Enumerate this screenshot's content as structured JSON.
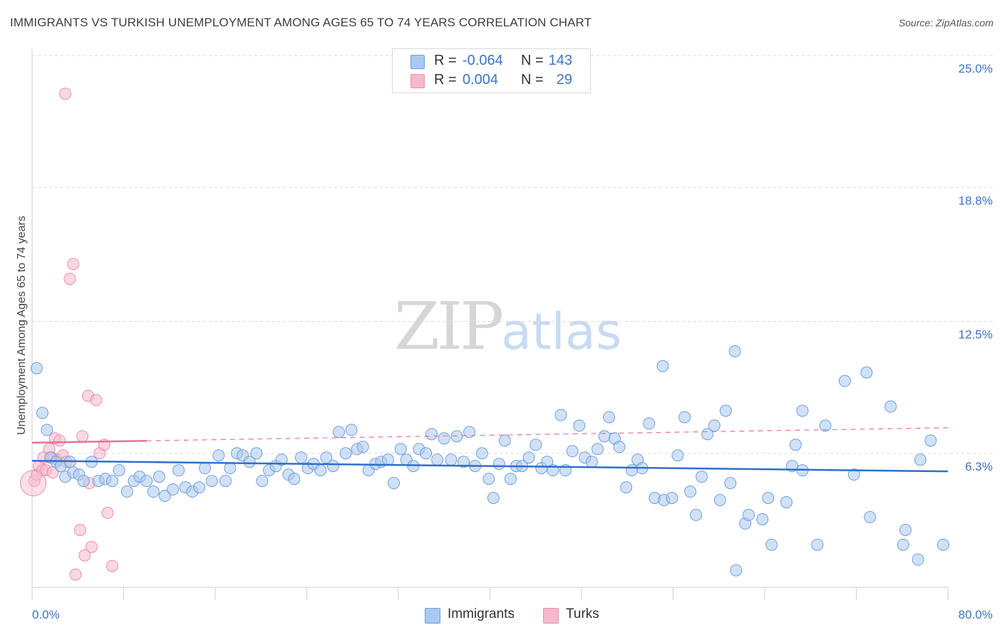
{
  "title": "IMMIGRANTS VS TURKISH UNEMPLOYMENT AMONG AGES 65 TO 74 YEARS CORRELATION CHART",
  "source": "Source: ZipAtlas.com",
  "watermark": {
    "zip": "ZIP",
    "atlas": "atlas"
  },
  "legend": {
    "immigrants": {
      "r_label": "R = ",
      "r_value": "-0.064",
      "n_label": "N = ",
      "n_value": "143"
    },
    "turks": {
      "r_label": "R = ",
      "r_value": "0.004",
      "n_label": "N = ",
      "n_value": "29"
    }
  },
  "bottom_legend": {
    "immigrants": "Immigrants",
    "turks": "Turks"
  },
  "colors": {
    "immigrants_fill": "#a9c9f0",
    "immigrants_stroke": "#6f9fdc",
    "immigrants_line": "#2f6fc9",
    "turks_fill": "#f6b8cb",
    "turks_stroke": "#e98fab",
    "turks_line": "#e8709a",
    "grid": "#d8d8d8",
    "tick_label": "#3b73c4"
  },
  "chart_data": {
    "type": "scatter",
    "title": "IMMIGRANTS VS TURKISH UNEMPLOYMENT AMONG AGES 65 TO 74 YEARS CORRELATION CHART",
    "xlabel": "",
    "ylabel": "Unemployment Among Ages 65 to 74 years",
    "xlim": [
      0,
      80
    ],
    "ylim": [
      0,
      25
    ],
    "x_tick_labels": [
      "0.0%",
      "80.0%"
    ],
    "y_ticks": [
      6.3,
      12.5,
      18.8,
      25.0
    ],
    "y_tick_labels": [
      "6.3%",
      "12.5%",
      "18.8%",
      "25.0%"
    ],
    "grid": true,
    "legend_position": "top-center",
    "series": [
      {
        "name": "Immigrants",
        "trend": {
          "x": [
            0,
            80
          ],
          "y": [
            5.95,
            5.45
          ]
        },
        "points": [
          [
            0.4,
            10.3
          ],
          [
            0.9,
            8.2
          ],
          [
            1.3,
            7.4
          ],
          [
            1.6,
            6.1
          ],
          [
            2.1,
            5.9
          ],
          [
            2.5,
            5.7
          ],
          [
            2.9,
            5.2
          ],
          [
            3.3,
            5.9
          ],
          [
            3.6,
            5.4
          ],
          [
            4.1,
            5.3
          ],
          [
            4.5,
            5.0
          ],
          [
            5.2,
            5.9
          ],
          [
            5.8,
            5.0
          ],
          [
            6.4,
            5.1
          ],
          [
            7.0,
            5.0
          ],
          [
            7.6,
            5.5
          ],
          [
            8.3,
            4.5
          ],
          [
            8.9,
            5.0
          ],
          [
            9.4,
            5.2
          ],
          [
            10.0,
            5.0
          ],
          [
            10.6,
            4.5
          ],
          [
            11.1,
            5.2
          ],
          [
            11.6,
            4.3
          ],
          [
            12.3,
            4.6
          ],
          [
            12.8,
            5.5
          ],
          [
            13.4,
            4.7
          ],
          [
            14.0,
            4.5
          ],
          [
            14.6,
            4.7
          ],
          [
            15.1,
            5.6
          ],
          [
            15.7,
            5.0
          ],
          [
            16.3,
            6.2
          ],
          [
            16.9,
            5.0
          ],
          [
            17.3,
            5.6
          ],
          [
            17.9,
            6.3
          ],
          [
            18.4,
            6.2
          ],
          [
            19.0,
            5.9
          ],
          [
            19.6,
            6.3
          ],
          [
            20.1,
            5.0
          ],
          [
            20.7,
            5.5
          ],
          [
            21.3,
            5.7
          ],
          [
            21.8,
            6.0
          ],
          [
            22.4,
            5.3
          ],
          [
            22.9,
            5.1
          ],
          [
            23.5,
            6.1
          ],
          [
            24.1,
            5.6
          ],
          [
            24.6,
            5.8
          ],
          [
            25.2,
            5.5
          ],
          [
            25.7,
            6.1
          ],
          [
            26.3,
            5.7
          ],
          [
            26.8,
            7.3
          ],
          [
            27.4,
            6.3
          ],
          [
            27.9,
            7.4
          ],
          [
            28.4,
            6.5
          ],
          [
            28.9,
            6.6
          ],
          [
            29.4,
            5.5
          ],
          [
            30.0,
            5.8
          ],
          [
            30.5,
            5.9
          ],
          [
            31.1,
            6.0
          ],
          [
            31.6,
            4.9
          ],
          [
            32.2,
            6.5
          ],
          [
            32.7,
            6.0
          ],
          [
            33.3,
            5.7
          ],
          [
            33.8,
            6.5
          ],
          [
            34.4,
            6.3
          ],
          [
            34.9,
            7.2
          ],
          [
            35.4,
            6.0
          ],
          [
            36.0,
            7.0
          ],
          [
            36.6,
            6.0
          ],
          [
            37.1,
            7.1
          ],
          [
            37.7,
            5.9
          ],
          [
            38.2,
            7.3
          ],
          [
            38.7,
            5.7
          ],
          [
            39.3,
            6.3
          ],
          [
            39.9,
            5.1
          ],
          [
            40.3,
            4.2
          ],
          [
            40.8,
            5.8
          ],
          [
            41.3,
            6.9
          ],
          [
            41.8,
            5.1
          ],
          [
            42.3,
            5.7
          ],
          [
            42.8,
            5.7
          ],
          [
            43.4,
            6.1
          ],
          [
            44.0,
            6.7
          ],
          [
            44.5,
            5.6
          ],
          [
            45.0,
            5.9
          ],
          [
            45.5,
            5.5
          ],
          [
            46.2,
            8.1
          ],
          [
            46.6,
            5.5
          ],
          [
            47.2,
            6.4
          ],
          [
            47.8,
            7.6
          ],
          [
            48.3,
            6.1
          ],
          [
            48.9,
            5.9
          ],
          [
            49.4,
            6.5
          ],
          [
            50.0,
            7.1
          ],
          [
            50.4,
            8.0
          ],
          [
            50.9,
            7.0
          ],
          [
            51.3,
            6.6
          ],
          [
            51.9,
            4.7
          ],
          [
            52.4,
            5.5
          ],
          [
            52.9,
            6.0
          ],
          [
            53.3,
            5.6
          ],
          [
            53.9,
            7.7
          ],
          [
            54.4,
            4.2
          ],
          [
            55.1,
            10.4
          ],
          [
            55.2,
            4.1
          ],
          [
            55.9,
            4.2
          ],
          [
            56.4,
            6.2
          ],
          [
            57.0,
            8.0
          ],
          [
            57.5,
            4.5
          ],
          [
            58.0,
            3.4
          ],
          [
            58.5,
            5.2
          ],
          [
            59.0,
            7.2
          ],
          [
            59.6,
            7.6
          ],
          [
            60.1,
            4.1
          ],
          [
            60.6,
            8.3
          ],
          [
            61.0,
            4.9
          ],
          [
            61.4,
            11.1
          ],
          [
            62.3,
            3.0
          ],
          [
            62.6,
            3.4
          ],
          [
            63.8,
            3.2
          ],
          [
            64.3,
            4.2
          ],
          [
            64.6,
            2.0
          ],
          [
            65.9,
            4.0
          ],
          [
            66.4,
            5.7
          ],
          [
            66.7,
            6.7
          ],
          [
            67.3,
            8.3
          ],
          [
            67.3,
            5.5
          ],
          [
            68.6,
            2.0
          ],
          [
            69.3,
            7.6
          ],
          [
            71.0,
            9.7
          ],
          [
            71.8,
            5.3
          ],
          [
            72.9,
            10.1
          ],
          [
            73.2,
            3.3
          ],
          [
            75.0,
            8.5
          ],
          [
            76.3,
            2.7
          ],
          [
            76.1,
            2.0
          ],
          [
            77.4,
            1.3
          ],
          [
            77.6,
            6.0
          ],
          [
            78.5,
            6.9
          ],
          [
            79.6,
            2.0
          ],
          [
            61.5,
            0.8
          ]
        ]
      },
      {
        "name": "Turks",
        "trend": {
          "x": [
            0,
            80
          ],
          "y": [
            6.8,
            7.5
          ]
        },
        "points": [
          [
            0.2,
            5.0
          ],
          [
            0.4,
            5.3
          ],
          [
            0.6,
            5.7
          ],
          [
            0.9,
            5.5
          ],
          [
            1.0,
            6.1
          ],
          [
            1.2,
            5.5
          ],
          [
            1.5,
            6.5
          ],
          [
            1.7,
            6.1
          ],
          [
            2.0,
            7.0
          ],
          [
            2.2,
            6.0
          ],
          [
            2.4,
            6.9
          ],
          [
            2.7,
            6.2
          ],
          [
            3.0,
            5.9
          ],
          [
            3.3,
            14.5
          ],
          [
            3.6,
            15.2
          ],
          [
            3.8,
            0.6
          ],
          [
            4.2,
            2.7
          ],
          [
            4.4,
            7.1
          ],
          [
            4.6,
            1.5
          ],
          [
            4.9,
            9.0
          ],
          [
            5.0,
            4.9
          ],
          [
            5.2,
            1.9
          ],
          [
            5.6,
            8.8
          ],
          [
            5.9,
            6.3
          ],
          [
            6.3,
            6.7
          ],
          [
            6.6,
            3.5
          ],
          [
            7.0,
            1.0
          ],
          [
            2.9,
            23.2
          ],
          [
            1.8,
            5.4
          ]
        ]
      }
    ]
  }
}
